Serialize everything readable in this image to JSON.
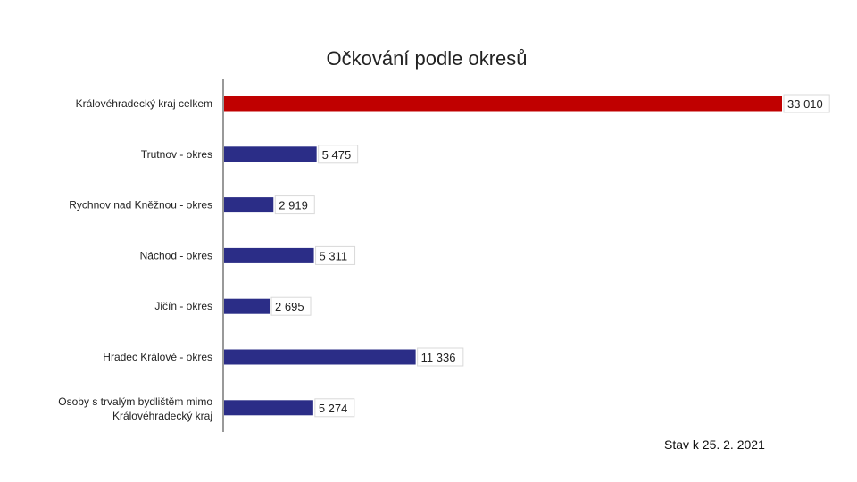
{
  "colors": {
    "total_bar": "#c00000",
    "district_bar": "#2b2d87",
    "axis": "#333333",
    "label_box_border": "#d9d9d9"
  },
  "footnote": "Stav k 25. 2. 2021",
  "chart_data": {
    "type": "bar",
    "orientation": "horizontal",
    "title": "Očkování podle okresů",
    "xlim": [
      0,
      33010
    ],
    "grid": false,
    "legend": "none",
    "categories": [
      "Královéhradecký kraj celkem",
      "Trutnov - okres",
      "Rychnov nad Kněžnou - okres",
      "Náchod - okres",
      "Jičín - okres",
      "Hradec Králové - okres",
      "Osoby s trvalým bydlištěm mimo Královéhradecký kraj"
    ],
    "values": [
      33010,
      5475,
      2919,
      5311,
      2695,
      11336,
      5274
    ],
    "value_labels": [
      "33 010",
      "5 475",
      "2 919",
      "5 311",
      "2 695",
      "11 336",
      "5 274"
    ],
    "highlight_index": 0
  }
}
